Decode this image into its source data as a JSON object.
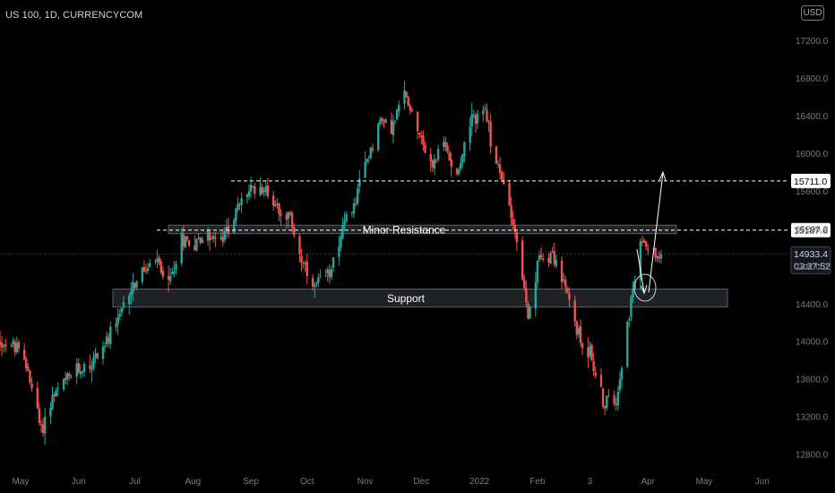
{
  "header": {
    "symbol": "US 100, 1D, CURRENCYCOM",
    "currency": "USD"
  },
  "colors": {
    "background": "#000000",
    "up": "#26a69a",
    "down": "#ef5350",
    "axis_text": "#787b86",
    "zone_fill": "#2a2c31",
    "zone_border": "#5d6068",
    "dashed_line": "#ffffff"
  },
  "chart_data": {
    "type": "candlestick",
    "x_ticks": [
      "May",
      "Jun",
      "Jul",
      "Aug",
      "Sep",
      "Oct",
      "Nov",
      "Dec",
      "2022",
      "Feb",
      "3",
      "Apr",
      "May",
      "Jun"
    ],
    "y_ticks": [
      12800.0,
      13200.0,
      13600.0,
      14000.0,
      14400.0,
      14800.0,
      15200.0,
      15600.0,
      16000.0,
      16400.0,
      16800.0,
      17200.0
    ],
    "y_tick_labels": [
      "12800.0",
      "13200.0",
      "13600.0",
      "14000.0",
      "14400.0",
      "14800.0",
      "15200.0",
      "15600.0",
      "16000.0",
      "16400.0",
      "16800.0",
      "17200.0"
    ],
    "ylim": [
      12600,
      17350
    ],
    "x_range": [
      "2021-04-20",
      "2022-06-15"
    ],
    "price_waypoints": [
      [
        "2021-04-20",
        14000
      ],
      [
        "2021-04-28",
        13950
      ],
      [
        "2021-05-05",
        13700
      ],
      [
        "2021-05-12",
        13050
      ],
      [
        "2021-05-18",
        13400
      ],
      [
        "2021-05-24",
        13550
      ],
      [
        "2021-05-31",
        13700
      ],
      [
        "2021-06-07",
        13750
      ],
      [
        "2021-06-14",
        13950
      ],
      [
        "2021-06-21",
        14150
      ],
      [
        "2021-06-28",
        14550
      ],
      [
        "2021-07-06",
        14750
      ],
      [
        "2021-07-13",
        14850
      ],
      [
        "2021-07-19",
        14600
      ],
      [
        "2021-07-26",
        15100
      ],
      [
        "2021-08-02",
        15050
      ],
      [
        "2021-08-09",
        15150
      ],
      [
        "2021-08-16",
        15050
      ],
      [
        "2021-08-23",
        15350
      ],
      [
        "2021-08-30",
        15600
      ],
      [
        "2021-09-07",
        15650
      ],
      [
        "2021-09-15",
        15450
      ],
      [
        "2021-09-22",
        15300
      ],
      [
        "2021-09-29",
        14800
      ],
      [
        "2021-10-04",
        14550
      ],
      [
        "2021-10-12",
        14700
      ],
      [
        "2021-10-19",
        15150
      ],
      [
        "2021-10-26",
        15450
      ],
      [
        "2021-11-02",
        15950
      ],
      [
        "2021-11-09",
        16350
      ],
      [
        "2021-11-16",
        16300
      ],
      [
        "2021-11-22",
        16650
      ],
      [
        "2021-11-30",
        16250
      ],
      [
        "2021-12-06",
        15850
      ],
      [
        "2021-12-13",
        16100
      ],
      [
        "2021-12-20",
        15800
      ],
      [
        "2021-12-27",
        16300
      ],
      [
        "2022-01-03",
        16500
      ],
      [
        "2022-01-10",
        15900
      ],
      [
        "2022-01-18",
        15400
      ],
      [
        "2022-01-24",
        14700
      ],
      [
        "2022-01-27",
        14200
      ],
      [
        "2022-02-02",
        14900
      ],
      [
        "2022-02-09",
        14950
      ],
      [
        "2022-02-16",
        14550
      ],
      [
        "2022-02-24",
        14000
      ],
      [
        "2022-03-01",
        13900
      ],
      [
        "2022-03-08",
        13350
      ],
      [
        "2022-03-15",
        13400
      ],
      [
        "2022-03-21",
        14200
      ],
      [
        "2022-03-29",
        15100
      ],
      [
        "2022-04-04",
        14950
      ],
      [
        "2022-04-08",
        14933
      ]
    ],
    "last_price": 14933.4,
    "annotations": {
      "resistance_high": {
        "price": 15711.0,
        "label": "15711.0"
      },
      "minor_resistance": {
        "price": 15187.6,
        "label": "15187.6",
        "zone_top": 15240,
        "zone_bottom": 15150,
        "text": "Minor Resistance"
      },
      "support": {
        "zone_top": 14560,
        "zone_bottom": 14370,
        "text": "Support"
      },
      "current_price": {
        "label": "14933.4",
        "countdown": "03:37:52"
      }
    }
  }
}
